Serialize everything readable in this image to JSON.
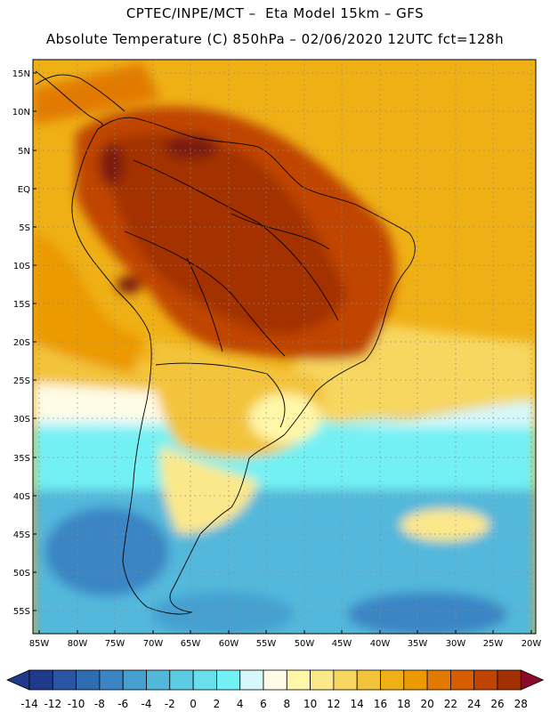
{
  "header": {
    "line1": "CPTEC/INPE/MCT –  Eta Model 15km – GFS",
    "line2": "Absolute Temperature (C) 850hPa – 02/06/2020 12UTC fct=128h"
  },
  "map": {
    "lat_labels": [
      "15N",
      "10N",
      "5N",
      "EQ",
      "5S",
      "10S",
      "15S",
      "20S",
      "25S",
      "30S",
      "35S",
      "40S",
      "45S",
      "50S",
      "55S"
    ],
    "lon_labels": [
      "85W",
      "80W",
      "75W",
      "70W",
      "65W",
      "60W",
      "55W",
      "50W",
      "45W",
      "40W",
      "35W",
      "30W",
      "25W",
      "20W"
    ]
  },
  "colorbar": {
    "ticks": [
      "-14",
      "-12",
      "-10",
      "-8",
      "-6",
      "-4",
      "-2",
      "0",
      "2",
      "4",
      "6",
      "8",
      "10",
      "12",
      "14",
      "16",
      "18",
      "20",
      "22",
      "24",
      "26",
      "28"
    ],
    "colors": [
      "#1f3a8a",
      "#2a55a3",
      "#2f6db3",
      "#3a85c4",
      "#45a0d0",
      "#52b8db",
      "#5dcce3",
      "#69dfeb",
      "#73f0f3",
      "#d6f8fb",
      "#fffbe6",
      "#fff7a8",
      "#fbe88a",
      "#f7d760",
      "#f3c43a",
      "#efb015",
      "#eb9a00",
      "#e27a00",
      "#d65e00",
      "#c04400",
      "#a33000",
      "#7a1f10",
      "#8b0a2a"
    ]
  }
}
